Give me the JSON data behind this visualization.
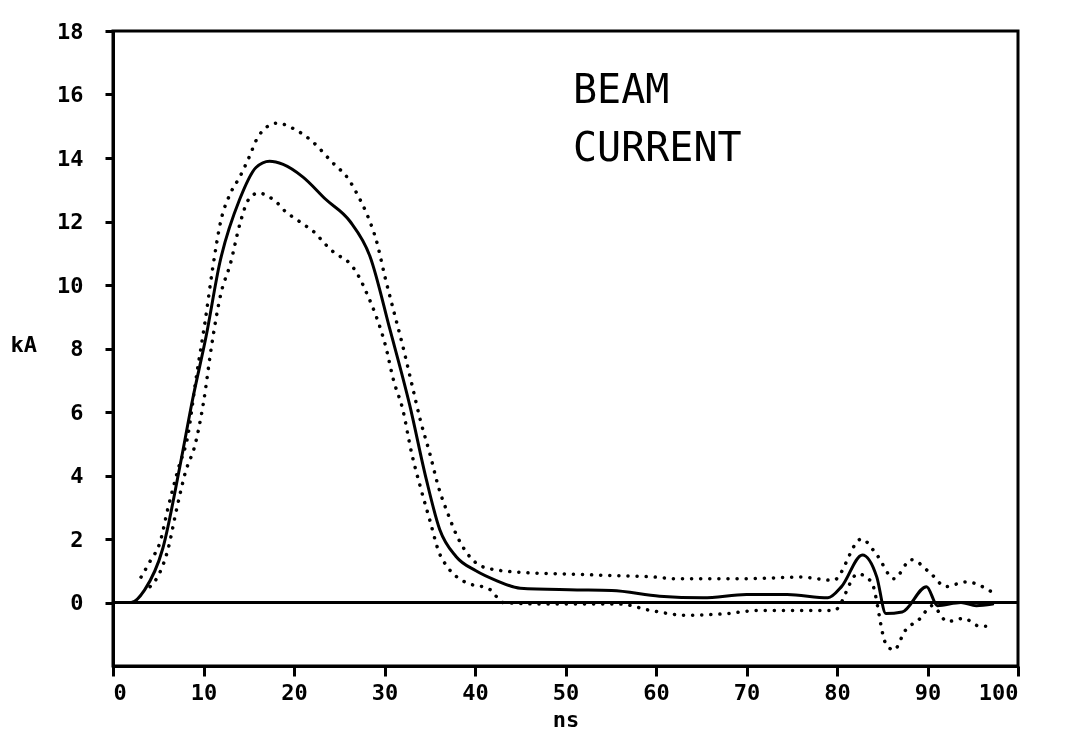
{
  "chart_data": {
    "type": "line",
    "xlabel": "ns",
    "ylabel": "kA",
    "xlim": [
      0,
      100
    ],
    "xticks": [
      0,
      10,
      20,
      30,
      40,
      50,
      60,
      70,
      80,
      90,
      100
    ],
    "ylim": [
      -2,
      18
    ],
    "yticks": [
      0,
      2,
      4,
      6,
      8,
      10,
      12,
      14,
      16,
      18
    ],
    "grid": false,
    "annotations": [
      "BEAM CURRENT"
    ],
    "ref_lines": [
      {
        "axis": "y",
        "value": 0,
        "color": "#000000"
      }
    ],
    "series": [
      {
        "color": "#000000",
        "line_style": "solid",
        "x": [
          0,
          2,
          3.5,
          5.5,
          7.4,
          8.8,
          10.3,
          11.8,
          14,
          15.8,
          17.3,
          18.8,
          21,
          23.5,
          26.2,
          28.4,
          30.6,
          32.8,
          34.6,
          36.1,
          37.9,
          40.1,
          42.3,
          45,
          50.4,
          55.1,
          60.4,
          65.2,
          70,
          74.5,
          79,
          80.5,
          82.8,
          84.4,
          85.4,
          87.2,
          89.9,
          91.1,
          93.7,
          95.4,
          97.2
        ],
        "values": [
          0,
          0,
          0.4,
          1.7,
          4.3,
          6.4,
          8.4,
          10.7,
          12.7,
          13.7,
          13.9,
          13.8,
          13.4,
          12.7,
          12.0,
          10.9,
          8.6,
          6.2,
          3.9,
          2.3,
          1.45,
          1.0,
          0.7,
          0.45,
          0.4,
          0.38,
          0.2,
          0.15,
          0.25,
          0.25,
          0.15,
          0.5,
          1.5,
          0.8,
          -0.35,
          -0.3,
          0.5,
          -0.1,
          0.0,
          -0.1,
          -0.05
        ]
      },
      {
        "color": "#000000",
        "line_style": "dotted",
        "x": [
          3.1,
          4.1,
          5.2,
          6.1,
          7.2,
          8.3,
          9.1,
          10.2,
          11.0,
          11.9,
          13.0,
          14.0,
          15.0,
          16.1,
          18.1,
          20.1,
          22.1,
          24.1,
          26.1,
          27.1,
          28.1,
          29.1,
          30.1,
          31.0,
          32.0,
          33.0,
          34.0,
          35.0,
          36.0,
          37.0,
          38.0,
          39.0,
          40.1,
          41.1,
          45,
          50,
          55,
          60,
          62,
          70,
          76,
          79.6,
          82.7,
          84.4,
          86.3,
          88.2,
          90.4,
          92,
          94.3,
          97
        ],
        "values": [
          0.8,
          1.3,
          1.9,
          3.0,
          4.2,
          5.3,
          6.9,
          8.9,
          10.5,
          12.0,
          12.9,
          13.4,
          14.0,
          14.7,
          15.1,
          14.9,
          14.5,
          13.9,
          13.3,
          12.8,
          12.2,
          11.4,
          10.2,
          9.2,
          8.1,
          6.9,
          5.7,
          4.7,
          3.6,
          2.8,
          2.1,
          1.6,
          1.25,
          1.1,
          0.95,
          0.9,
          0.85,
          0.8,
          0.75,
          0.75,
          0.8,
          0.7,
          2.0,
          1.5,
          0.75,
          1.35,
          0.9,
          0.5,
          0.65,
          0.35
        ]
      },
      {
        "color": "#000000",
        "line_style": "dotted",
        "x": [
          4.1,
          5.1,
          6.1,
          7.0,
          8.0,
          9.1,
          10.0,
          10.9,
          11.9,
          13.0,
          14.0,
          15.0,
          16.1,
          17.1,
          18.1,
          19.1,
          20.1,
          21.1,
          22.1,
          23.1,
          24.1,
          25.1,
          26.1,
          27.1,
          28.1,
          29.1,
          30.1,
          31.0,
          32.0,
          33.0,
          34.0,
          35.0,
          36.0,
          37.0,
          38.8,
          41.7,
          43.1,
          47.8,
          56,
          59.4,
          63.3,
          67.8,
          71.3,
          75.5,
          79.7,
          82.3,
          83.8,
          85.4,
          86.3,
          87.5,
          89.2,
          90.5,
          92.2,
          94,
          95.8,
          96.6
        ],
        "values": [
          0.5,
          0.9,
          1.7,
          2.9,
          4.1,
          5.0,
          6.3,
          8.1,
          9.7,
          10.7,
          11.9,
          12.7,
          12.9,
          12.8,
          12.6,
          12.3,
          12.1,
          11.9,
          11.7,
          11.4,
          11.1,
          10.9,
          10.7,
          10.3,
          9.7,
          9.0,
          8.1,
          7.0,
          6.1,
          4.7,
          3.6,
          2.6,
          1.6,
          1.1,
          0.66,
          0.4,
          0.0,
          -0.05,
          -0.05,
          -0.25,
          -0.4,
          -0.35,
          -0.25,
          -0.25,
          -0.25,
          0.9,
          0.65,
          -1.3,
          -1.5,
          -0.9,
          -0.5,
          -0.1,
          -0.6,
          -0.5,
          -0.75,
          -0.75
        ]
      }
    ]
  }
}
